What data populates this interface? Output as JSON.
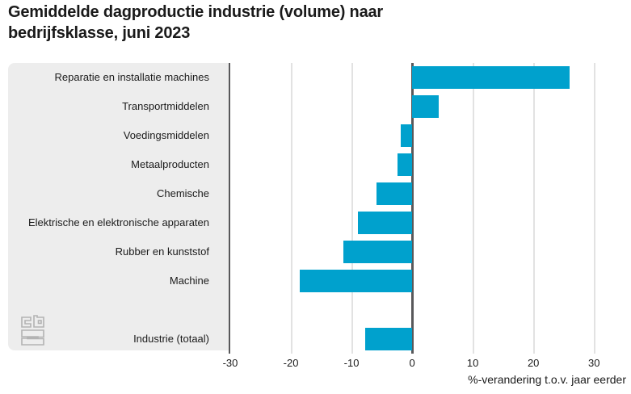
{
  "header": {
    "title": "Gemiddelde dagproductie industrie (volume) naar bedrijfsklasse, juni 2023",
    "menu_icon": "hamburger-menu-icon"
  },
  "branding": {
    "logo": "cbs-logo"
  },
  "colors": {
    "bar": "#00a1cd",
    "panel_background": "#ededed",
    "axis_line": "#58585a",
    "gridline": "#e2e2e2",
    "text": "#1b1b1b",
    "menu_icon": "#666666",
    "logo": "#b3b3b3"
  },
  "chart_data": {
    "type": "bar",
    "orientation": "horizontal",
    "title": "Gemiddelde dagproductie industrie (volume) naar bedrijfsklasse, juni 2023",
    "categories": [
      "Reparatie en installatie machines",
      "Transportmiddelen",
      "Voedingsmiddelen",
      "Metaalproducten",
      "Chemische",
      "Elektrische en elektronische apparaten",
      "Rubber en kunststof",
      "Machine",
      "Industrie (totaal)"
    ],
    "values": [
      26,
      4.4,
      -1.9,
      -2.4,
      -5.9,
      -8.9,
      -11.4,
      -18.5,
      -7.8
    ],
    "xlabel": "%-verandering t.o.v. jaar eerder",
    "xticks": [
      "-30",
      "-20",
      "-10",
      "0",
      "10",
      "20",
      "30"
    ],
    "xtick_values": [
      -30,
      -20,
      -10,
      0,
      10,
      20,
      30
    ],
    "xlim": [
      -30,
      35.3
    ],
    "grid": true,
    "legend": false,
    "last_category_separated": true
  }
}
